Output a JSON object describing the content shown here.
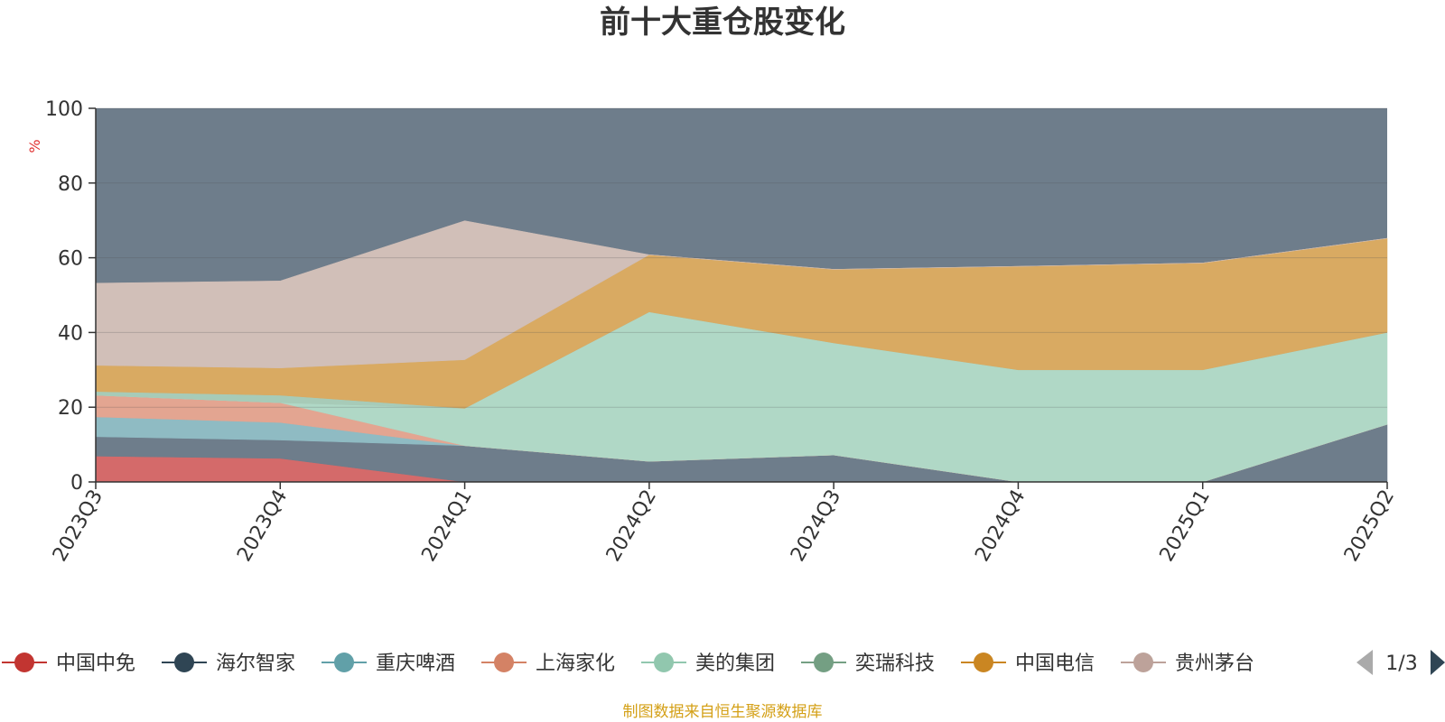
{
  "chart_data": {
    "type": "area",
    "title": "前十大重仓股变化",
    "ylabel": "%",
    "ylim": [
      0,
      100
    ],
    "yticks": [
      0,
      20,
      40,
      60,
      80,
      100
    ],
    "grid": true,
    "legend_position": "bottom",
    "categories": [
      "2023Q3",
      "2023Q4",
      "2024Q1",
      "2024Q2",
      "2024Q3",
      "2024Q4",
      "2025Q1",
      "2025Q2"
    ],
    "series": [
      {
        "name": "中国中免",
        "color": "#d46a6a",
        "values": [
          6.9,
          6.3,
          0,
          0,
          0,
          0,
          0,
          0
        ]
      },
      {
        "name": "海尔智家",
        "color": "#6e7d8b",
        "values": [
          5.2,
          4.9,
          9.7,
          5.5,
          7.2,
          0,
          0,
          15.4
        ]
      },
      {
        "name": "重庆啤酒",
        "color": "#8fbbc3",
        "values": [
          5.3,
          4.7,
          0,
          0,
          0,
          0,
          0,
          0
        ]
      },
      {
        "name": "上海家化",
        "color": "#e3a591",
        "values": [
          5.8,
          5.3,
          0,
          0,
          0,
          0,
          0,
          0
        ]
      },
      {
        "name": "美的集团",
        "color": "#b0d8c6",
        "values": [
          0,
          0,
          10.0,
          40.0,
          30.0,
          30.0,
          30.0,
          24.6
        ]
      },
      {
        "name": "奕瑞科技",
        "color": "#a7cbb8",
        "values": [
          1.0,
          2.0,
          0,
          0,
          0,
          0,
          0,
          0
        ]
      },
      {
        "name": "中国电信",
        "color": "#d9aa62",
        "values": [
          7.0,
          7.3,
          13.0,
          15.3,
          19.7,
          27.7,
          28.6,
          25.2
        ]
      },
      {
        "name": "贵州茅台",
        "color": "#d1bfb8",
        "values": [
          22.0,
          23.3,
          37.2,
          0,
          0,
          0,
          0,
          0
        ]
      }
    ],
    "pagination": "1/3",
    "source_note": "制图数据来自恒生聚源数据库"
  }
}
